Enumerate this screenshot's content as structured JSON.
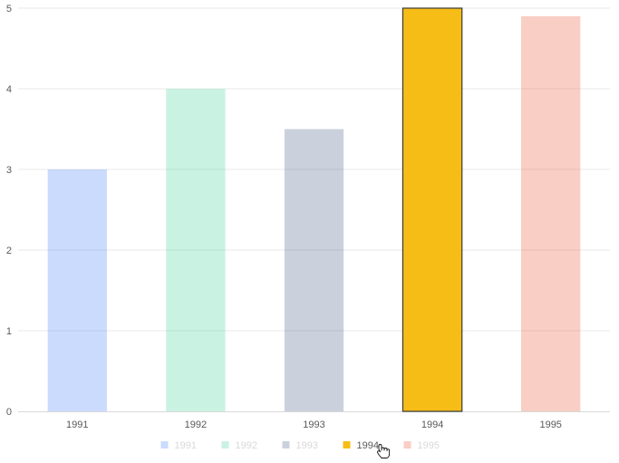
{
  "chart_data": {
    "type": "bar",
    "categories": [
      "1991",
      "1992",
      "1993",
      "1994",
      "1995"
    ],
    "values": [
      3,
      4,
      3.5,
      5,
      4.9
    ],
    "colors": [
      "#5B8FF9",
      "#5AD8A6",
      "#5D7092",
      "#F6BD16",
      "#E8684A"
    ],
    "active_category": "1994",
    "faded_opacity": 0.32,
    "ylim": [
      0,
      5
    ],
    "yticks": [
      0,
      1,
      2,
      3,
      4,
      5
    ],
    "grid": true,
    "legend": {
      "position": "bottom",
      "items": [
        "1991",
        "1992",
        "1993",
        "1994",
        "1995"
      ]
    },
    "title": "",
    "xlabel": "",
    "ylabel": ""
  },
  "cursor": {
    "icon": "hand-pointer-icon"
  }
}
